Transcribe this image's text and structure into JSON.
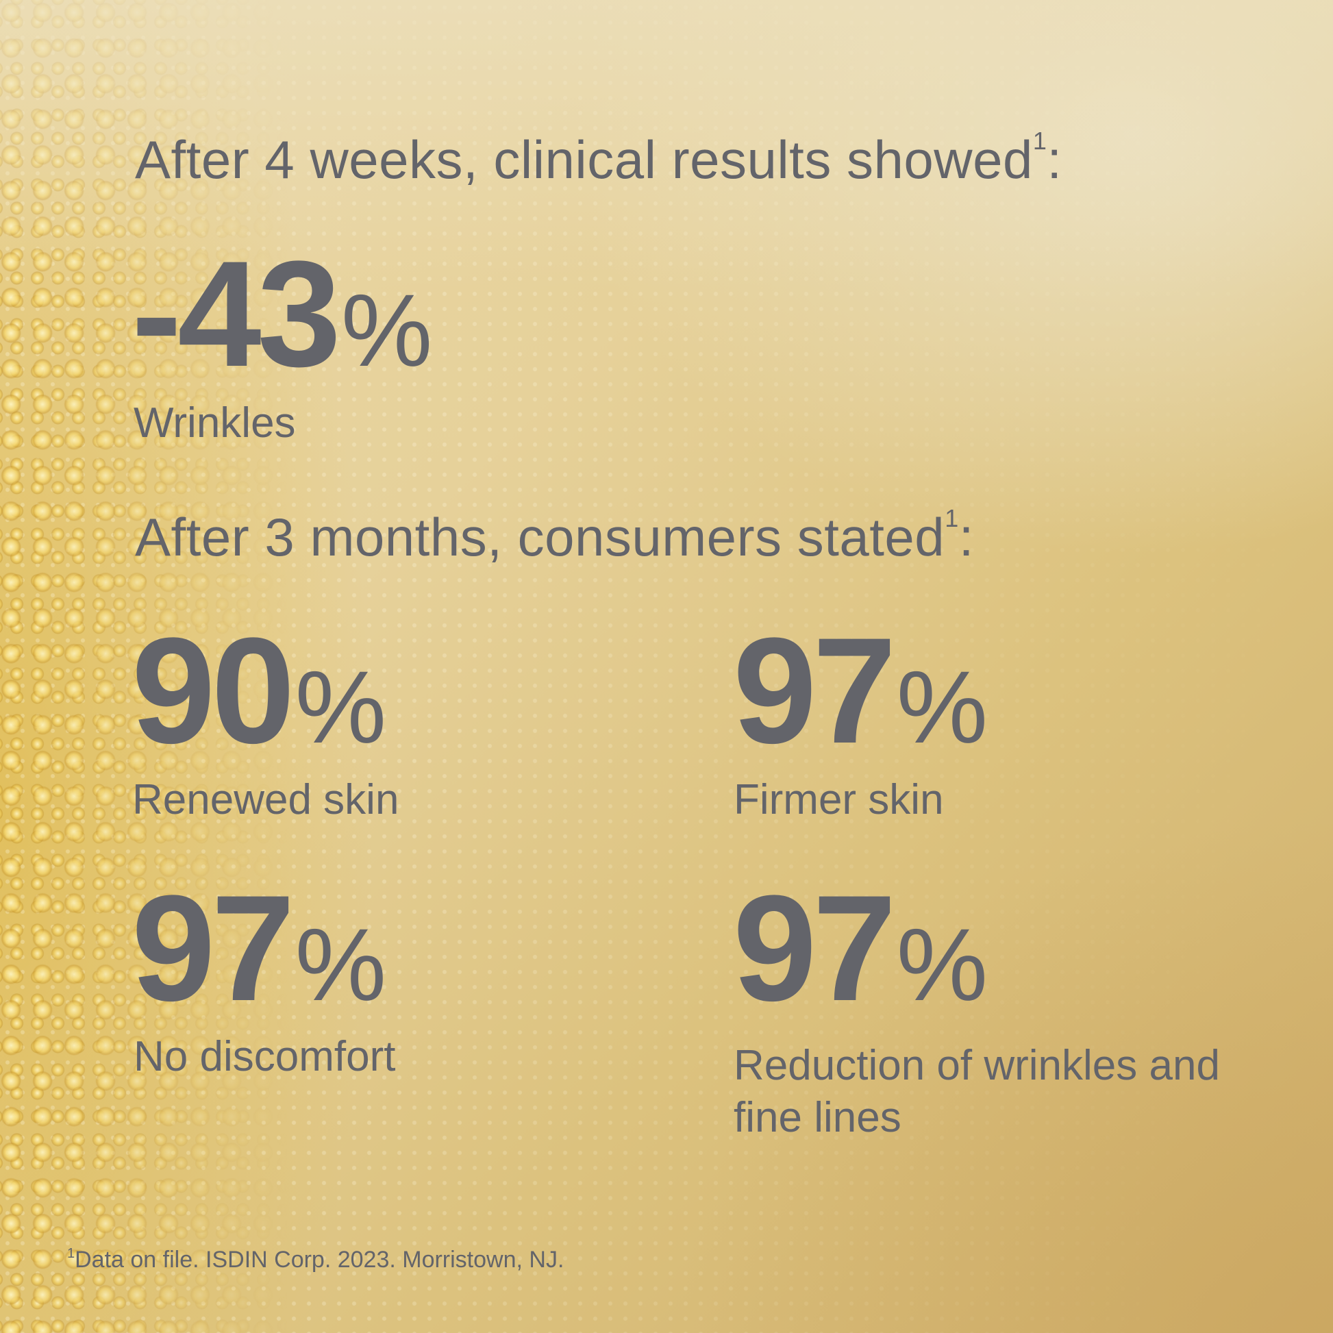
{
  "section1": {
    "heading": "After 4 weeks, clinical results showed",
    "heading_ref": "1",
    "heading_suffix": ":",
    "stat": {
      "value": "-43",
      "unit": "%",
      "label": "Wrinkles"
    }
  },
  "section2": {
    "heading": "After 3 months, consumers stated",
    "heading_ref": "1",
    "heading_suffix": ":",
    "stats": [
      {
        "value": "90",
        "unit": "%",
        "label": "Renewed skin"
      },
      {
        "value": "97",
        "unit": "%",
        "label": "Firmer skin"
      },
      {
        "value": "97",
        "unit": "%",
        "label": "No discomfort"
      },
      {
        "value": "97",
        "unit": "%",
        "label": "Reduction of wrinkles and fine lines"
      }
    ]
  },
  "footnote": {
    "ref": "1",
    "text": "Data on file. ISDIN Corp. 2023. Morristown, NJ."
  },
  "colors": {
    "text": "#63646a",
    "background": "#e6d19a"
  }
}
